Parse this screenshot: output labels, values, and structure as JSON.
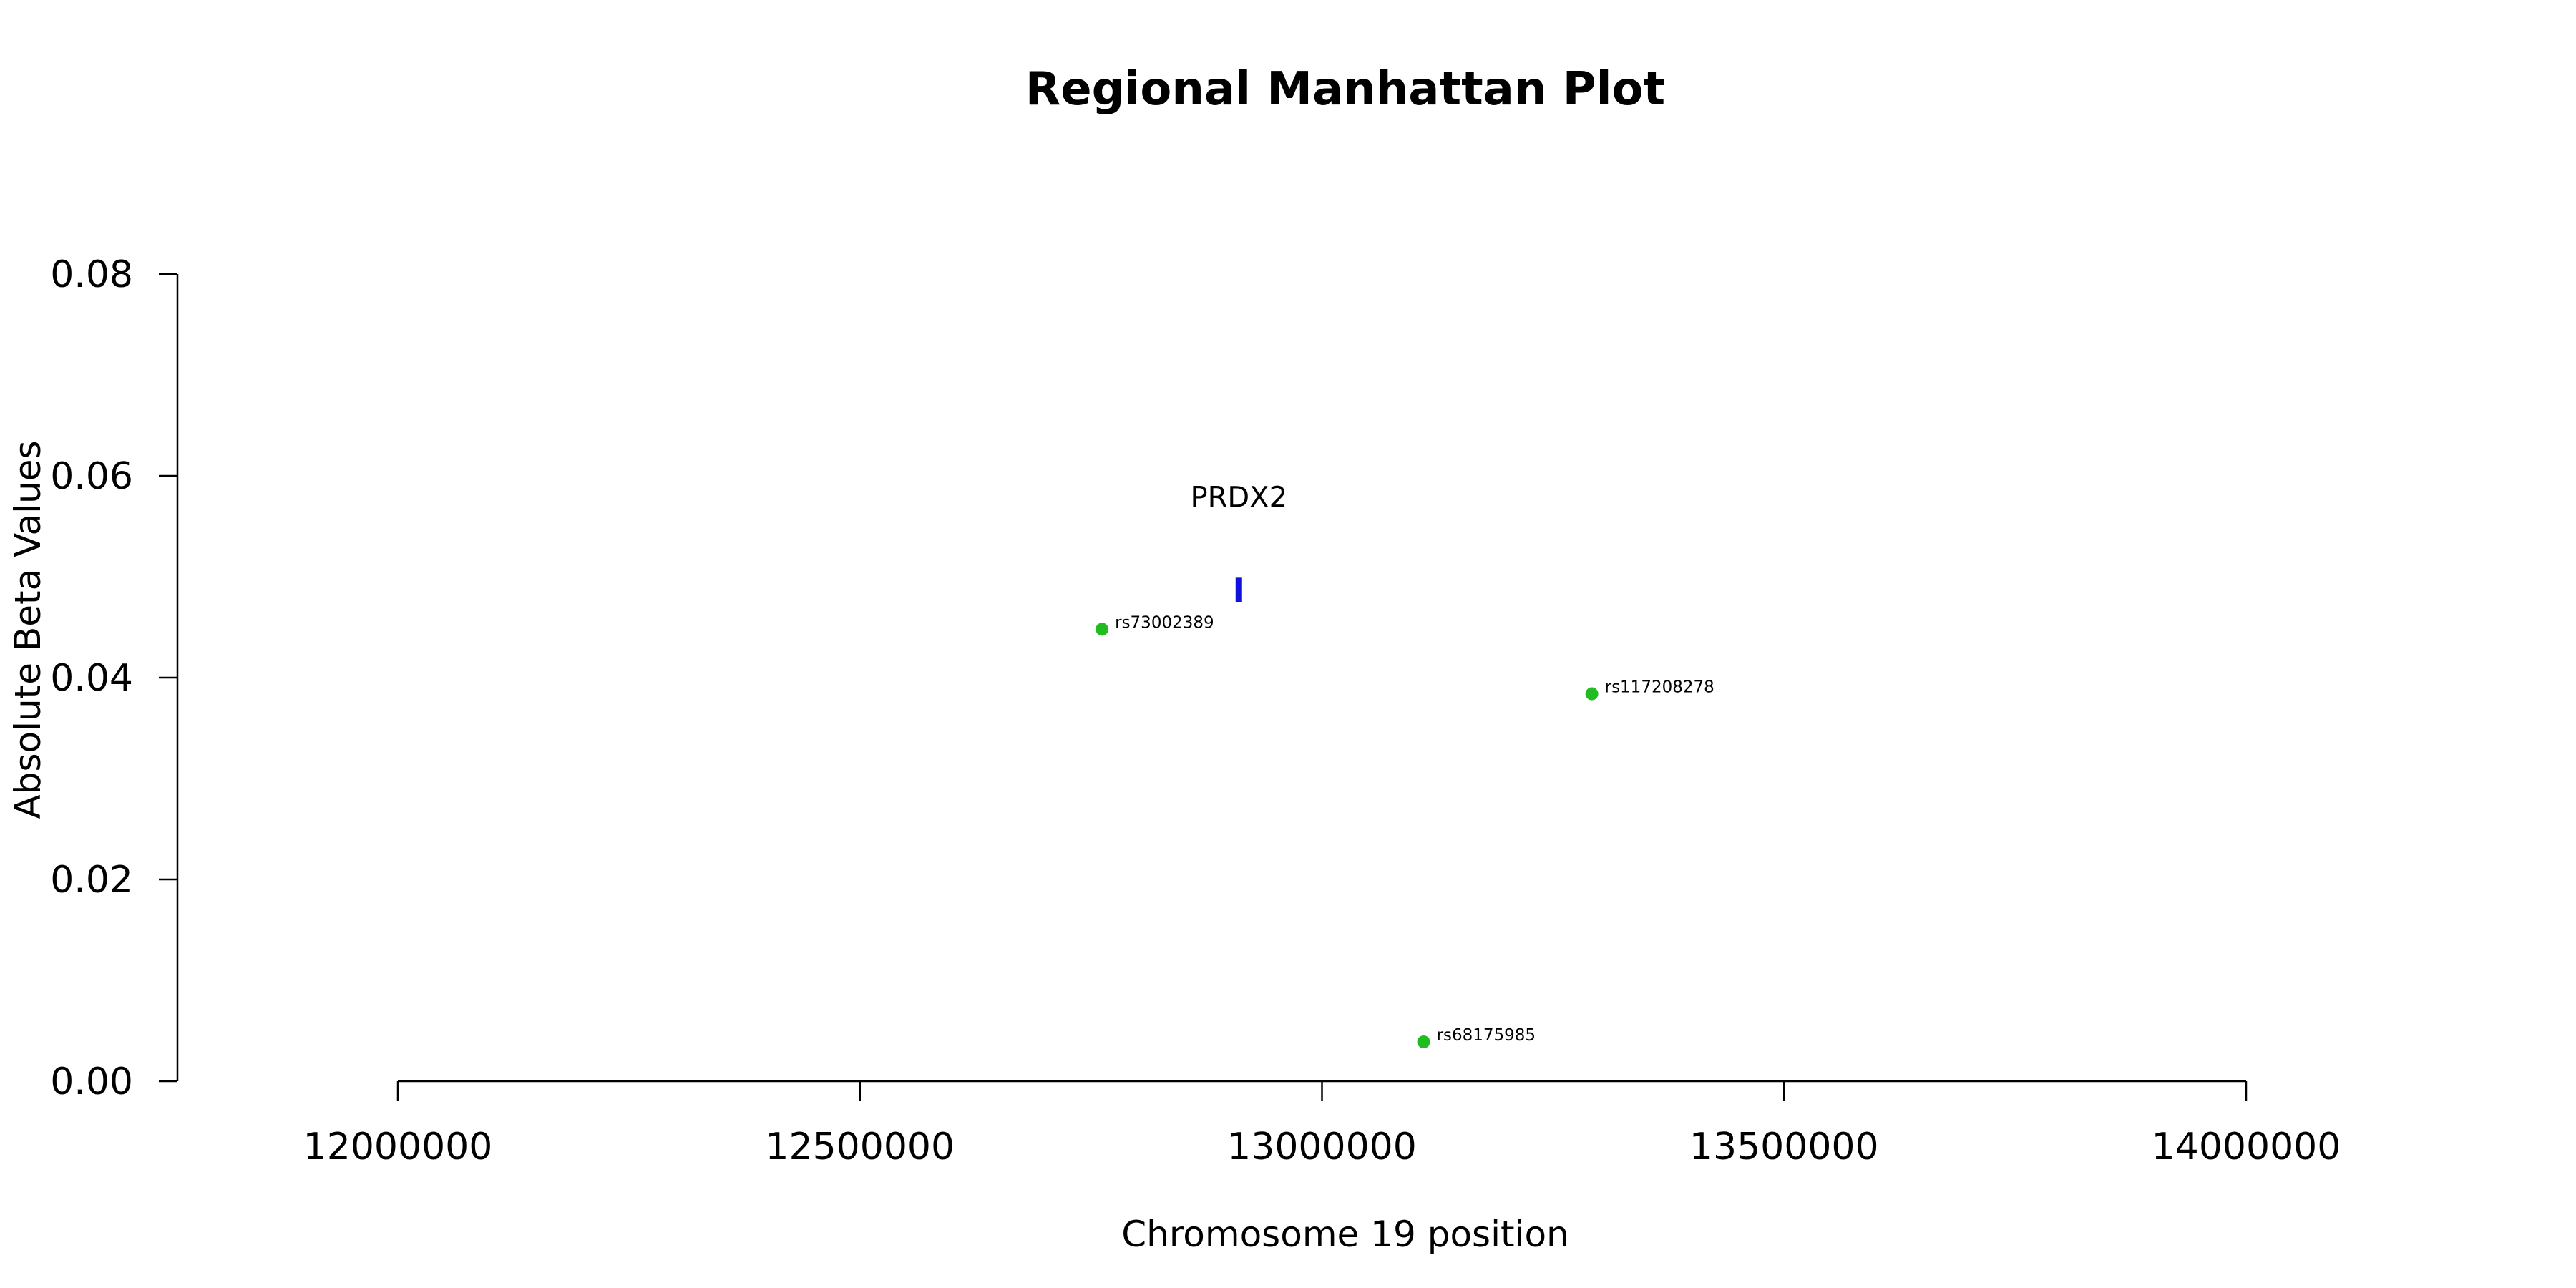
{
  "chart_data": {
    "type": "scatter",
    "title": "Regional Manhattan Plot",
    "xlabel": "Chromosome 19 position",
    "ylabel": "Absolute Beta Values",
    "xlim": [
      12000000,
      14000000
    ],
    "ylim": [
      0,
      0.08
    ],
    "x_ticks": [
      12000000,
      12500000,
      13000000,
      13500000,
      14000000
    ],
    "x_tick_labels": [
      "12000000",
      "12500000",
      "13000000",
      "13500000",
      "14000000"
    ],
    "y_ticks": [
      0,
      0.02,
      0.04,
      0.06,
      0.08
    ],
    "y_tick_labels": [
      "0.00",
      "0.02",
      "0.04",
      "0.06",
      "0.08"
    ],
    "grid": false,
    "point_color": "#22bb22",
    "points": [
      {
        "label": "rs73002389",
        "x": 12762000,
        "y": 0.0448
      },
      {
        "label": "rs117208278",
        "x": 13292000,
        "y": 0.0384
      },
      {
        "label": "rs68175985",
        "x": 13110000,
        "y": 0.0039
      }
    ],
    "genes": [
      {
        "name": "PRDX2",
        "start": 12907000,
        "end": 12913000,
        "y": 0.0487,
        "color": "#1111dd"
      }
    ]
  }
}
